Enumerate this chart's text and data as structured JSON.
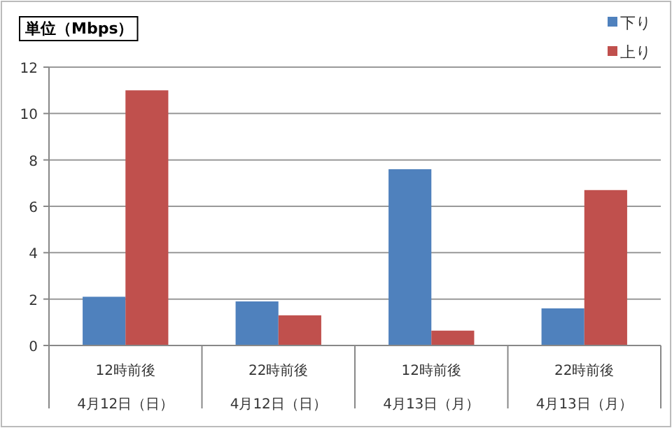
{
  "chart_data": {
    "type": "bar",
    "ylabel": "単位（Mbps）",
    "categories": [
      "12時前後\n4月12日（日）",
      "22時前後\n4月12日（日）",
      "12時前後\n4月13日（月）",
      "22時前後\n4月13日（月）"
    ],
    "series": [
      {
        "name": "下り",
        "color": "#4f81bd",
        "values": [
          2.1,
          1.9,
          7.6,
          1.6
        ]
      },
      {
        "name": "上り",
        "color": "#c0504d",
        "values": [
          11.0,
          1.3,
          0.64,
          6.7
        ]
      }
    ],
    "ylim": [
      0,
      12
    ],
    "yticks": [
      0,
      2,
      4,
      6,
      8,
      10,
      12
    ],
    "grid": "y",
    "legend": "top right"
  }
}
